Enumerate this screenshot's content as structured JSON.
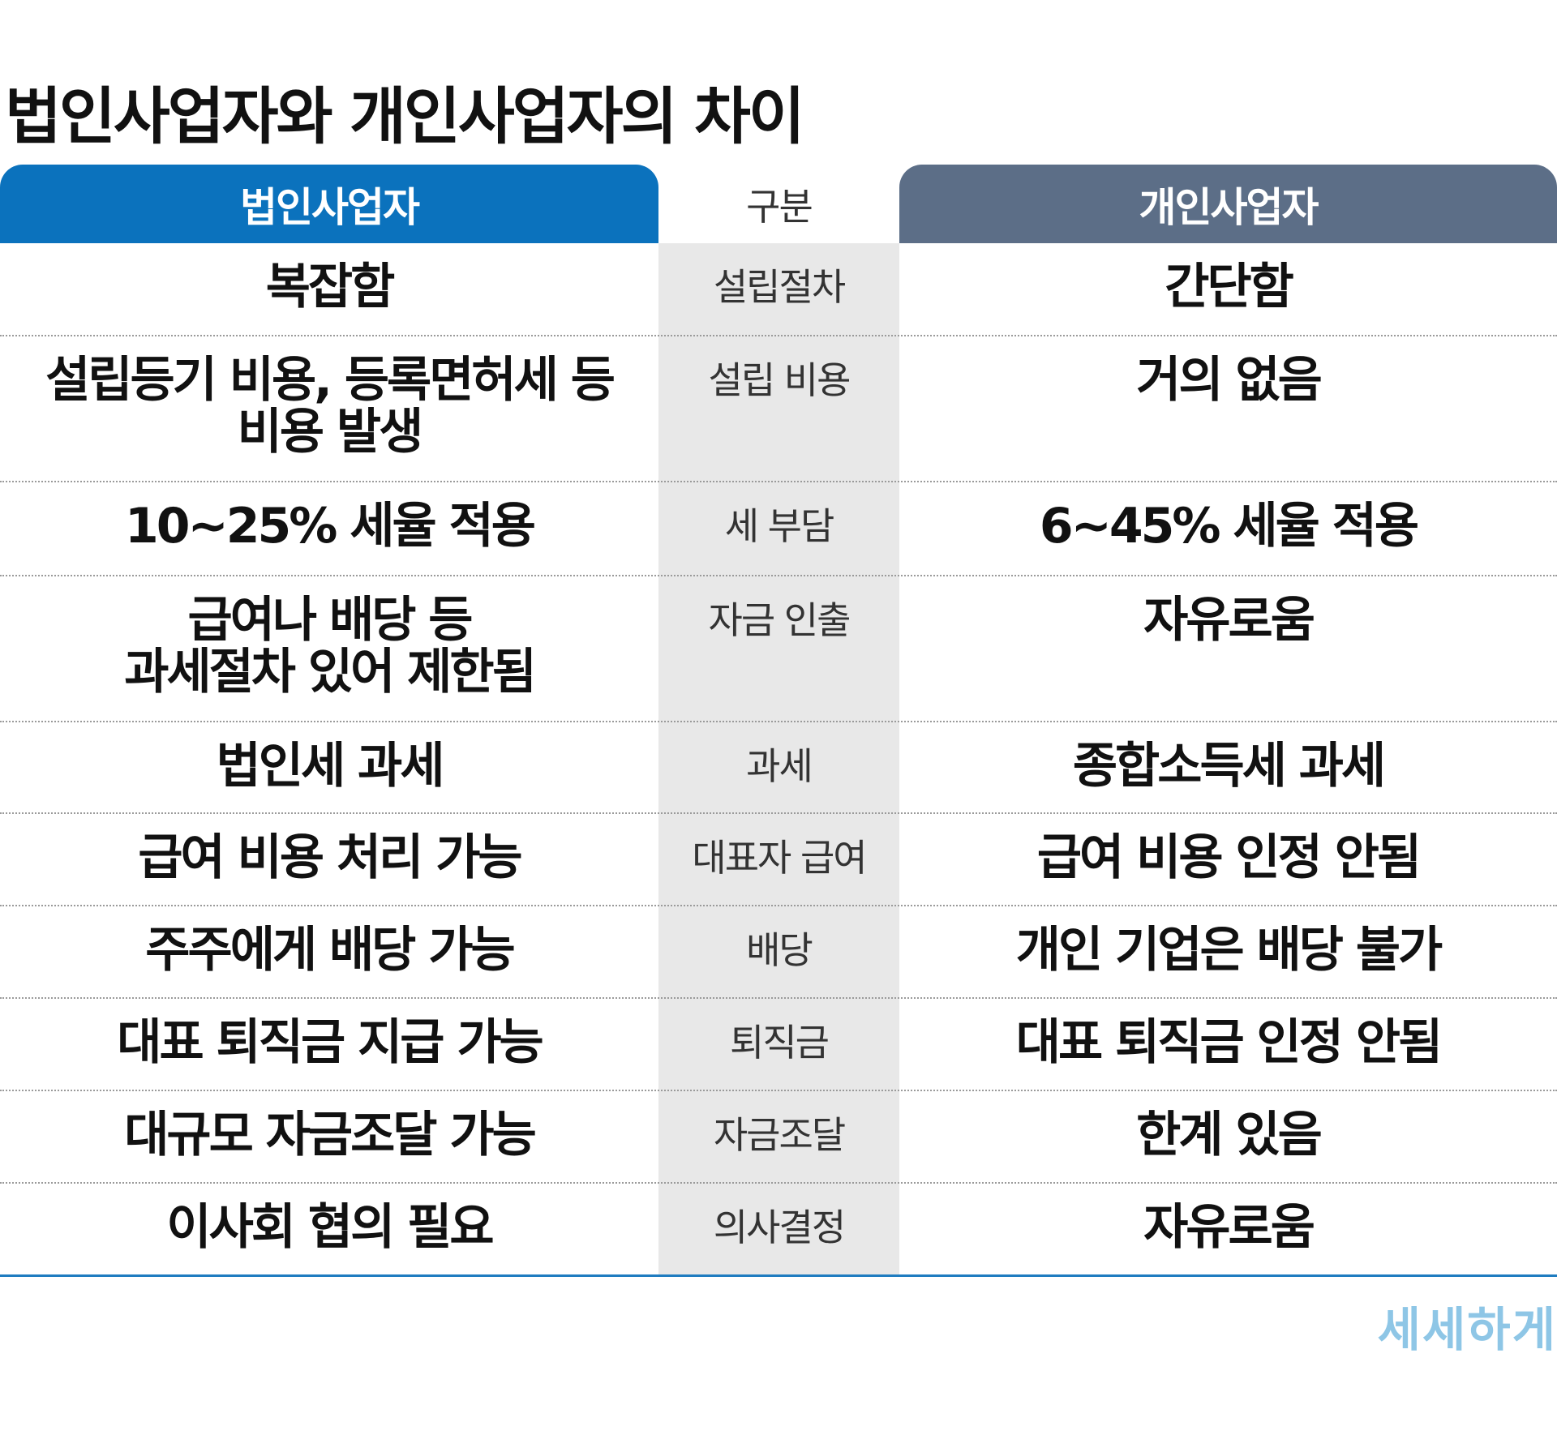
{
  "title": "법인사업자와 개인사업자의 차이",
  "header": {
    "left": "법인사업자",
    "middle": "구분",
    "right": "개인사업자"
  },
  "rows": [
    {
      "left": "복잡함",
      "category": "설립절차",
      "right": "간단함"
    },
    {
      "left": "설립등기 비용, 등록면허세 등\n비용 발생",
      "category": "설립 비용",
      "right": "거의 없음"
    },
    {
      "left": "10~25% 세율 적용",
      "category": "세 부담",
      "right": "6~45% 세율 적용"
    },
    {
      "left": "급여나 배당 등\n과세절차 있어 제한됨",
      "category": "자금 인출",
      "right": "자유로움"
    },
    {
      "left": "법인세 과세",
      "category": "과세",
      "right": "종합소득세 과세"
    },
    {
      "left": "급여 비용 처리 가능",
      "category": "대표자 급여",
      "right": "급여 비용 인정 안됨"
    },
    {
      "left": "주주에게 배당 가능",
      "category": "배당",
      "right": "개인 기업은 배당 불가"
    },
    {
      "left": "대표 퇴직금 지급 가능",
      "category": "퇴직금",
      "right": "대표 퇴직금 인정 안됨"
    },
    {
      "left": "대규모 자금조달 가능",
      "category": "자금조달",
      "right": "한계 있음"
    },
    {
      "left": "이사회 협의 필요",
      "category": "의사결정",
      "right": "자유로움"
    }
  ],
  "logo": "세세하게",
  "colors": {
    "corporate_header": "#0b72bd",
    "individual_header": "#5c6e87",
    "category_column": "#e8e8e8",
    "logo": "#8ec6e6"
  }
}
